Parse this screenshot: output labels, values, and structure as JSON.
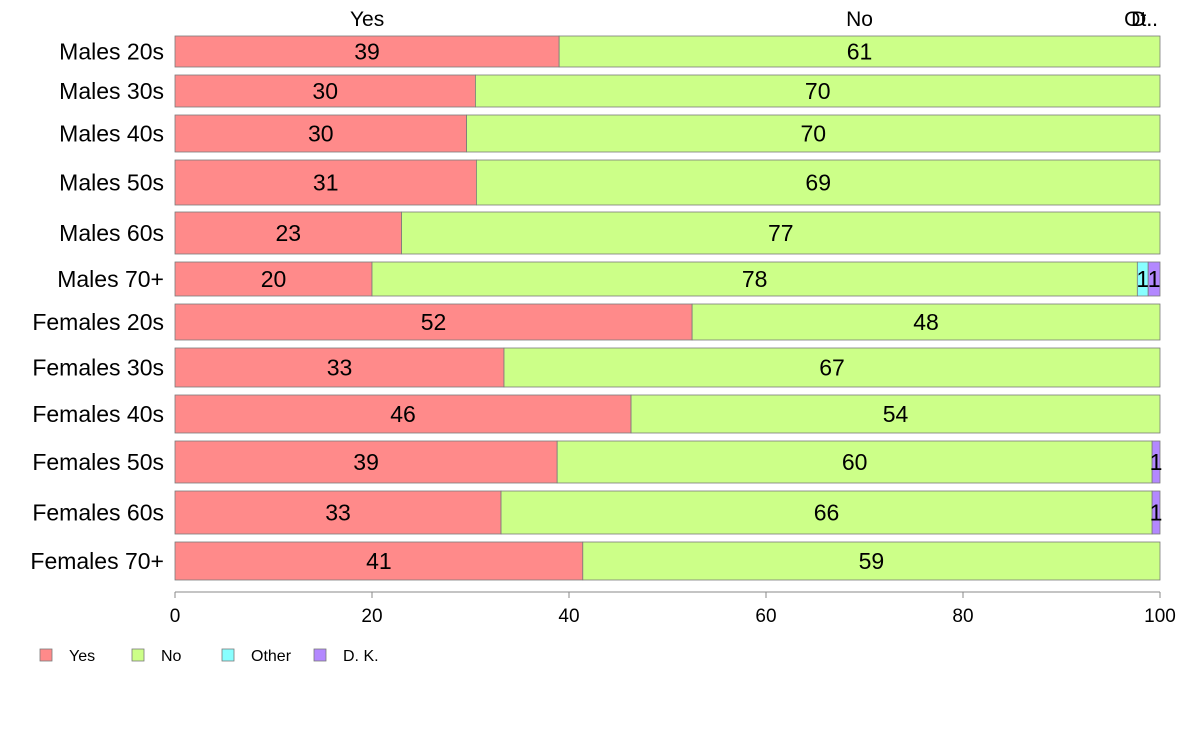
{
  "chart_data": {
    "type": "bar",
    "orientation": "horizontal",
    "stacked": "percent",
    "categories": [
      "Males 20s",
      "Males 30s",
      "Males 40s",
      "Males 50s",
      "Males 60s",
      "Males 70+",
      "Females 20s",
      "Females 30s",
      "Females 40s",
      "Females 50s",
      "Females 60s",
      "Females 70+"
    ],
    "series": [
      {
        "name": "Yes",
        "color": "#ff8a8a",
        "values": [
          39,
          30.5,
          29.6,
          30.6,
          23,
          20,
          52.5,
          33.4,
          46.3,
          38.8,
          33.1,
          41.4
        ],
        "labels": [
          "39",
          "30",
          "30",
          "31",
          "23",
          "20",
          "52",
          "33",
          "46",
          "39",
          "33",
          "41"
        ]
      },
      {
        "name": "No",
        "color": "#ccff88",
        "values": [
          61,
          69.5,
          70.4,
          69.4,
          77,
          77.7,
          47.5,
          66.6,
          53.7,
          60.4,
          66.1,
          58.6
        ],
        "labels": [
          "61",
          "70",
          "70",
          "69",
          "77",
          "78",
          "48",
          "67",
          "54",
          "60",
          "66",
          "59"
        ]
      },
      {
        "name": "Other",
        "color": "#88ffff",
        "values": [
          0,
          0,
          0,
          0,
          0,
          1.1,
          0,
          0,
          0,
          0,
          0,
          0
        ],
        "labels": [
          "",
          "",
          "",
          "",
          "",
          "1",
          "",
          "",
          "",
          "",
          "",
          ""
        ]
      },
      {
        "name": "D. K.",
        "color": "#b388ff",
        "values": [
          0,
          0,
          0,
          0,
          0,
          1.2,
          0,
          0,
          0,
          0.8,
          0.8,
          0
        ],
        "labels": [
          "",
          "",
          "",
          "",
          "",
          "1",
          "",
          "",
          "",
          "1",
          "1",
          ""
        ]
      }
    ],
    "top_labels": [
      "Yes",
      "No",
      "Ot..",
      "D.."
    ],
    "x_ticks": [
      "0",
      "20",
      "40",
      "60",
      "80",
      "100"
    ],
    "xlim": [
      0,
      100
    ],
    "grid": false,
    "legend_position": "bottom-left"
  }
}
